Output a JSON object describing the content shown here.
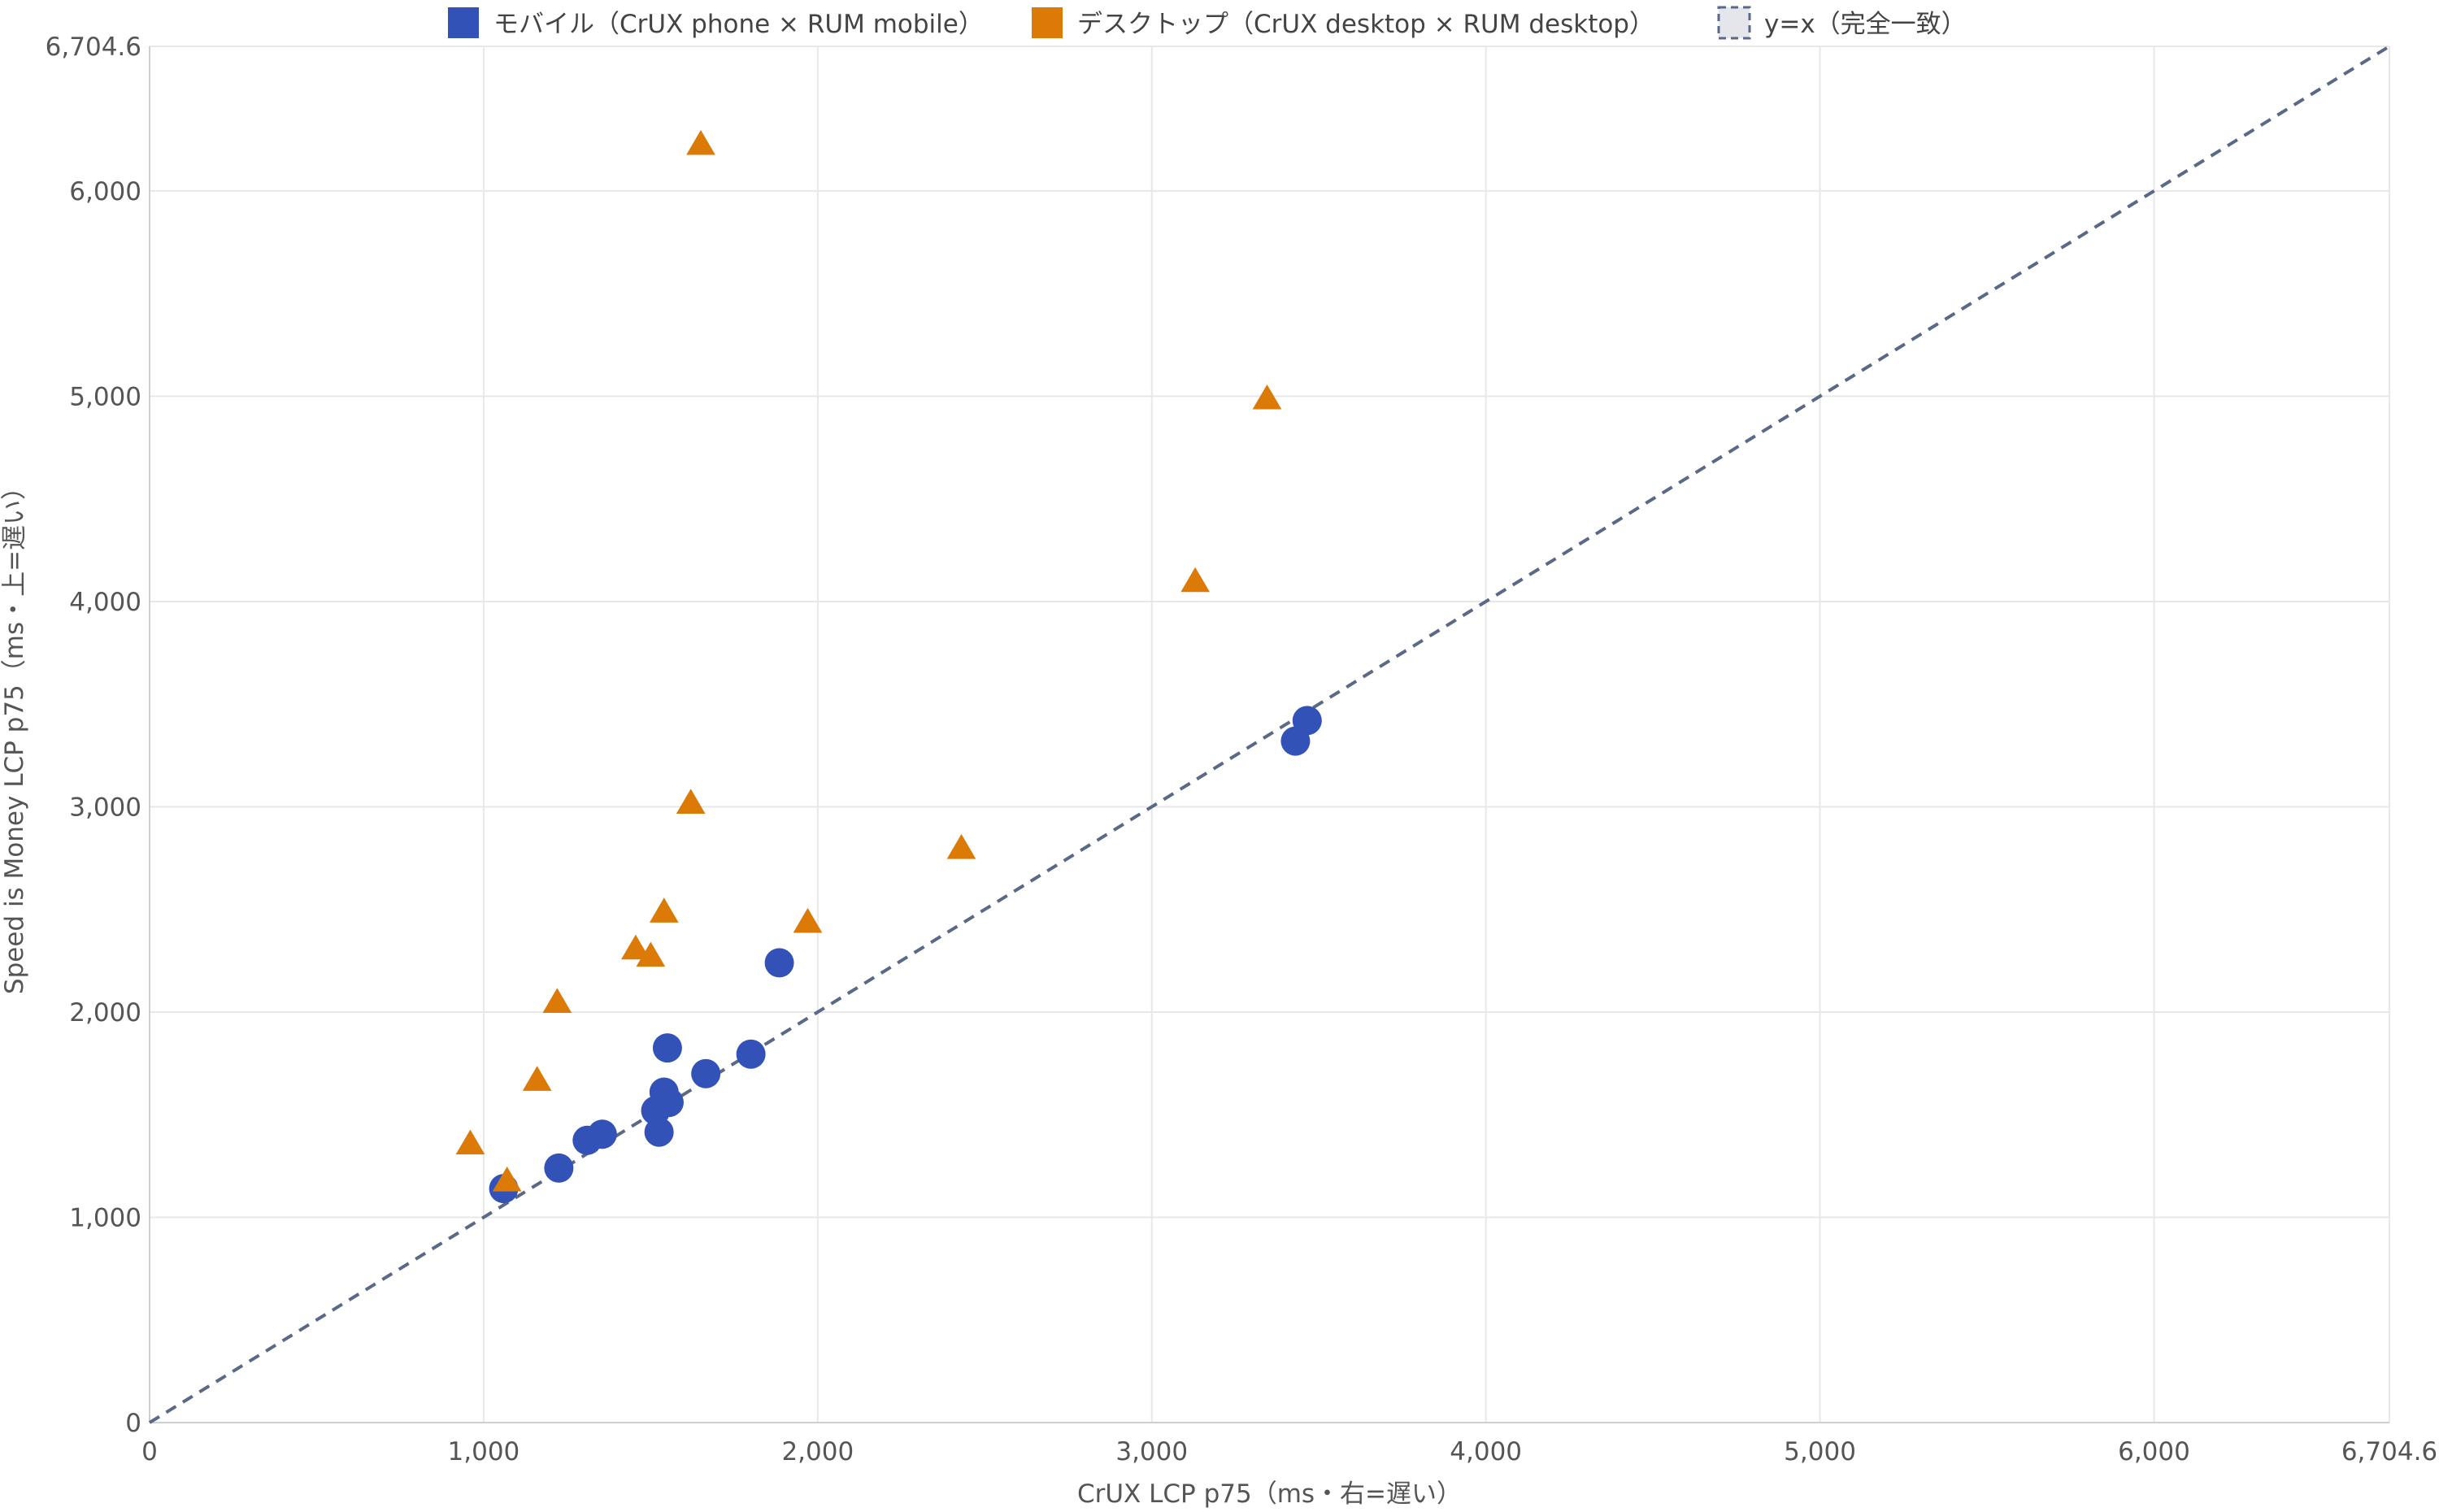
{
  "chart_data": {
    "type": "scatter",
    "xlabel": "CrUX LCP p75（ms・右=遅い）",
    "ylabel": "Speed is Money LCP p75（ms・上=遅い）",
    "xlim": [
      0,
      6704.6
    ],
    "ylim": [
      0,
      6704.6
    ],
    "x_ticks": [
      0,
      1000,
      2000,
      3000,
      4000,
      5000,
      6000,
      6704.6
    ],
    "y_ticks": [
      0,
      1000,
      2000,
      3000,
      4000,
      5000,
      6000,
      6704.6
    ],
    "x_tick_labels": [
      "0",
      "1,000",
      "2,000",
      "3,000",
      "4,000",
      "5,000",
      "6,000",
      "6,704.6"
    ],
    "y_tick_labels": [
      "0",
      "1,000",
      "2,000",
      "3,000",
      "4,000",
      "5,000",
      "6,000",
      "6,704.6"
    ],
    "grid": true,
    "legend_position": "top-center",
    "series": [
      {
        "name": "モバイル（CrUX phone × RUM mobile）",
        "marker": "circle",
        "color": "#3352b8",
        "points": [
          {
            "x": 1060,
            "y": 1140
          },
          {
            "x": 1225,
            "y": 1240
          },
          {
            "x": 1310,
            "y": 1375
          },
          {
            "x": 1355,
            "y": 1405
          },
          {
            "x": 1515,
            "y": 1520
          },
          {
            "x": 1525,
            "y": 1415
          },
          {
            "x": 1540,
            "y": 1610
          },
          {
            "x": 1555,
            "y": 1560
          },
          {
            "x": 1550,
            "y": 1825
          },
          {
            "x": 1665,
            "y": 1700
          },
          {
            "x": 1800,
            "y": 1795
          },
          {
            "x": 1885,
            "y": 2240
          },
          {
            "x": 3430,
            "y": 3320
          },
          {
            "x": 3465,
            "y": 3420
          }
        ]
      },
      {
        "name": "デスクトップ（CrUX desktop × RUM desktop）",
        "marker": "triangle",
        "color": "#dc7a08",
        "points": [
          {
            "x": 960,
            "y": 1360
          },
          {
            "x": 1070,
            "y": 1180
          },
          {
            "x": 1160,
            "y": 1670
          },
          {
            "x": 1220,
            "y": 2050
          },
          {
            "x": 1455,
            "y": 2310
          },
          {
            "x": 1500,
            "y": 2275
          },
          {
            "x": 1540,
            "y": 2490
          },
          {
            "x": 1620,
            "y": 3020
          },
          {
            "x": 1650,
            "y": 6230
          },
          {
            "x": 1970,
            "y": 2440
          },
          {
            "x": 2430,
            "y": 2800
          },
          {
            "x": 3130,
            "y": 4100
          },
          {
            "x": 3345,
            "y": 4990
          }
        ]
      },
      {
        "name": "y=x（完全一致）",
        "marker": "dashed-line",
        "color": "#5a6985",
        "points": [
          {
            "x": 0,
            "y": 0
          },
          {
            "x": 6704.6,
            "y": 6704.6
          }
        ]
      }
    ]
  }
}
